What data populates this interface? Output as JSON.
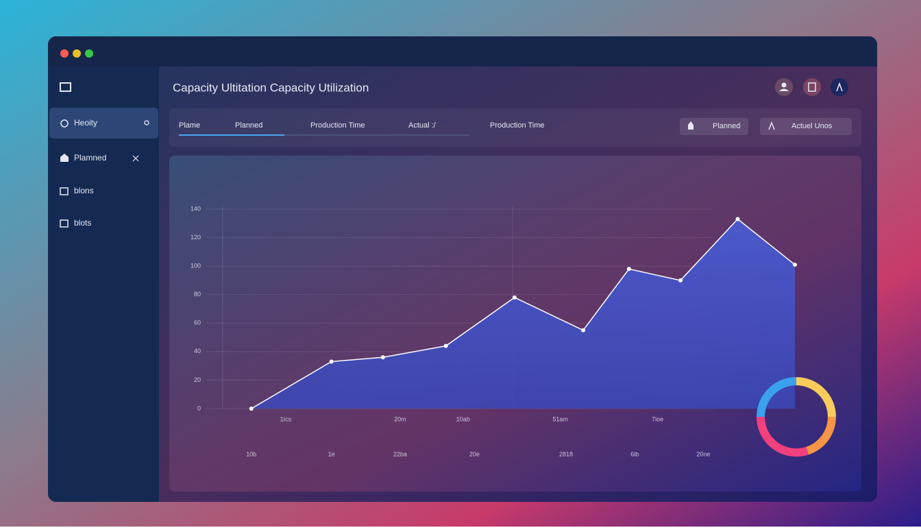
{
  "window": {
    "title": "Capacity Ultitation Capacity Utilization"
  },
  "sidebar": {
    "items": [
      "Heoity",
      "Plamned",
      "blons",
      "blots"
    ]
  },
  "tabs": [
    "Plame",
    "Planned",
    "Production Time",
    "Actual :/",
    "Production Time"
  ],
  "buttons": [
    "Planned",
    "Actuel Unos"
  ],
  "chart_data": [
    {
      "type": "area",
      "x": [
        5,
        19,
        28,
        39,
        51,
        63,
        71,
        80,
        90,
        100
      ],
      "values": [
        0,
        33,
        36,
        44,
        78,
        55,
        98,
        90,
        133,
        101
      ],
      "color": "#4a5bd0",
      "xlim": [
        0,
        100
      ],
      "ylim": [
        0,
        140
      ],
      "yticks": [
        0,
        20,
        40,
        60,
        80,
        100,
        120,
        140
      ],
      "grid": true,
      "xticks": [
        {
          "value": 11,
          "label": "1ícs"
        },
        {
          "value": 31,
          "label": "20m"
        },
        {
          "value": 42,
          "label": "10ab"
        },
        {
          "value": 59,
          "label": "51am"
        },
        {
          "value": 76,
          "label": "7ioe"
        }
      ],
      "xticks_lower": [
        {
          "value": 5,
          "label": "10b"
        },
        {
          "value": 19,
          "label": "1e"
        },
        {
          "value": 31,
          "label": "22ba"
        },
        {
          "value": 44,
          "label": "20e"
        },
        {
          "value": 60,
          "label": "2818"
        },
        {
          "value": 72,
          "label": "6ib"
        },
        {
          "value": 84,
          "label": "20ne"
        }
      ]
    },
    {
      "type": "pie",
      "donut": true,
      "values": [
        25,
        25,
        20,
        30
      ],
      "colors": [
        "#3aa0f0",
        "#f8cc5a",
        "#f59545",
        "#f0407e"
      ]
    }
  ]
}
